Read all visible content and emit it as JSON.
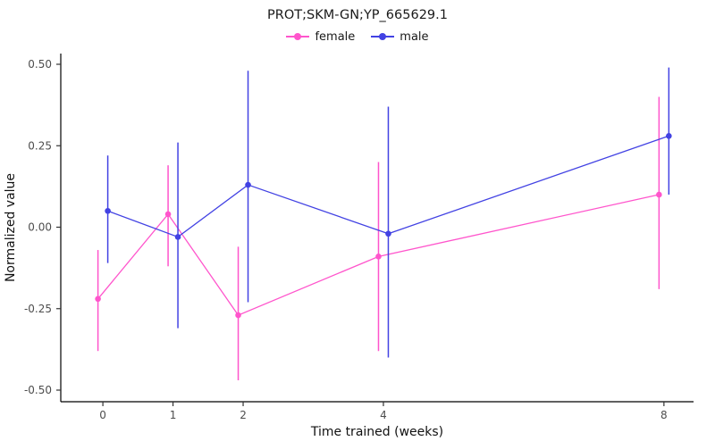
{
  "chart_data": {
    "type": "line",
    "title": "PROT;SKM-GN;YP_665629.1",
    "xlabel": "Time trained (weeks)",
    "ylabel": "Normalized value",
    "grid": false,
    "legend_position": "top-center",
    "xlim": [
      -0.6,
      8.42
    ],
    "ylim": [
      -0.5,
      0.5
    ],
    "x_ticks": [
      0,
      1,
      2,
      4,
      8
    ],
    "x_tick_labels": [
      "0",
      "1",
      "2",
      "4",
      "8"
    ],
    "y_ticks": [
      -0.5,
      -0.25,
      0,
      0.25,
      0.5
    ],
    "y_tick_labels": [
      "-0.50",
      "-0.25",
      "0.00",
      "0.25",
      "0.50"
    ],
    "x": [
      0,
      1,
      2,
      4,
      8
    ],
    "series": [
      {
        "name": "female",
        "color": "#FF55CC",
        "x_offset": -0.07,
        "values": [
          -0.22,
          0.04,
          -0.27,
          -0.09,
          0.1
        ],
        "err_low": [
          -0.38,
          -0.12,
          -0.47,
          -0.38,
          -0.19
        ],
        "err_high": [
          -0.07,
          0.19,
          -0.06,
          0.2,
          0.4
        ]
      },
      {
        "name": "male",
        "color": "#4242E3",
        "x_offset": 0.07,
        "values": [
          0.05,
          -0.03,
          0.13,
          -0.02,
          0.28
        ],
        "err_low": [
          -0.11,
          -0.31,
          -0.23,
          -0.4,
          0.1
        ],
        "err_high": [
          0.22,
          0.26,
          0.48,
          0.37,
          0.49
        ]
      }
    ]
  }
}
